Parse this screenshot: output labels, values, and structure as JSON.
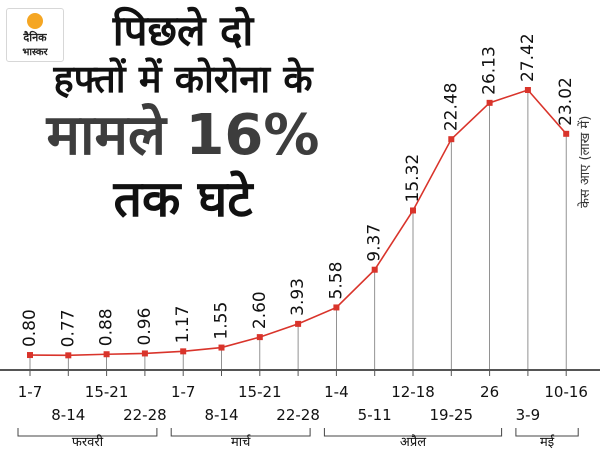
{
  "logo": {
    "line1": "दैनिक",
    "line2": "भास्कर"
  },
  "headline": {
    "line1": "पिछले दो",
    "line2": "हफ्तों में कोरोना के",
    "line3": "मामले 16%",
    "line4": "तक घटे"
  },
  "unit_label": "केस आए (लाख में)",
  "colors": {
    "line": "#d9342b",
    "point": "#d9342b",
    "axis": "#555555",
    "text": "#111111"
  },
  "chart_data": {
    "type": "line",
    "title": "पिछले दो हफ्तों में कोरोना के मामले 16% तक घटे",
    "ylabel": "केस आए (लाख में)",
    "categories": [
      "1-7",
      "8-14",
      "15-21",
      "22-28",
      "1-7",
      "8-14",
      "15-21",
      "22-28",
      "1-4",
      "5-11",
      "12-18",
      "19-25",
      "26",
      "3-9",
      "10-16"
    ],
    "values": [
      0.8,
      0.77,
      0.88,
      0.96,
      1.17,
      1.55,
      2.6,
      3.93,
      5.58,
      9.37,
      15.32,
      22.48,
      26.13,
      27.42,
      23.02
    ],
    "value_labels": [
      "0.80",
      "0.77",
      "0.88",
      "0.96",
      "1.17",
      "1.55",
      "2.60",
      "3.93",
      "5.58",
      "9.37",
      "15.32",
      "22.48",
      "26.13",
      "27.42",
      "23.02"
    ],
    "months": [
      {
        "label": "फरवरी",
        "from": 0,
        "to": 3
      },
      {
        "label": "मार्च",
        "from": 4,
        "to": 7
      },
      {
        "label": "अप्रैल",
        "from": 8,
        "to": 12
      },
      {
        "label": "मई",
        "from": 13,
        "to": 14
      }
    ],
    "ylim": [
      0,
      30
    ]
  }
}
